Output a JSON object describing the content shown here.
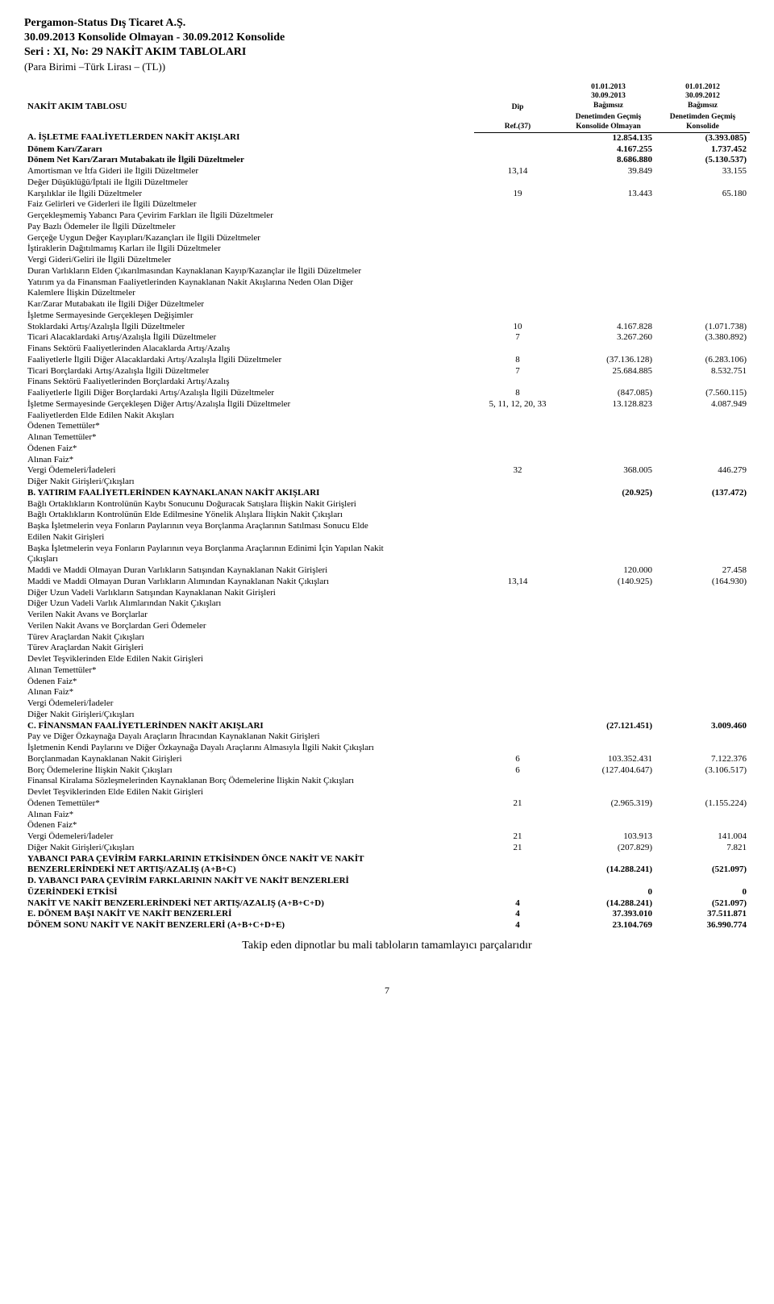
{
  "header": {
    "company": "Pergamon-Status Dış Ticaret A.Ş.",
    "period_line": "30.09.2013 Konsolide Olmayan - 30.09.2012 Konsolide",
    "series_line": "Seri : XI, No: 29 NAKİT AKIM TABLOLARI",
    "currency_line": "(Para Birimi –Türk Lirası – (TL))"
  },
  "thead": {
    "table_title": "NAKİT AKIM TABLOSU",
    "ref_top": "Dip",
    "ref_bottom": "Ref.(37)",
    "c1_date_a": "01.01.2013",
    "c1_date_b": "30.09.2013",
    "c1_l1": "Bağımsız",
    "c1_l2": "Denetimden Geçmiş",
    "c1_l3": "Konsolide Olmayan",
    "c2_date_a": "01.01.2012",
    "c2_date_b": "30.09.2012",
    "c2_l1": "Bağımsız",
    "c2_l2": "Denetimden Geçmiş",
    "c2_l3": "Konsolide"
  },
  "rows": [
    {
      "label": "A. İŞLETME FAALİYETLERDEN NAKİT AKIŞLARI",
      "ref": "",
      "v1": "12.854.135",
      "v2": "(3.393.085)",
      "bold": true
    },
    {
      "label": "Dönem Karı/Zararı",
      "ref": "",
      "v1": "4.167.255",
      "v2": "1.737.452",
      "bold": true
    },
    {
      "label": "Dönem Net Karı/Zararı Mutabakatı ile İlgili Düzeltmeler",
      "ref": "",
      "v1": "8.686.880",
      "v2": "(5.130.537)",
      "bold": true
    },
    {
      "label": "Amortisman ve İtfa Gideri ile İlgili Düzeltmeler",
      "ref": "13,14",
      "v1": "39.849",
      "v2": "33.155"
    },
    {
      "label": "Değer Düşüklüğü/İptali ile İlgili Düzeltmeler",
      "ref": "",
      "v1": "",
      "v2": ""
    },
    {
      "label": "Karşılıklar ile İlgili Düzeltmeler",
      "ref": "19",
      "v1": "13.443",
      "v2": "65.180"
    },
    {
      "label": "Faiz Gelirleri ve Giderleri ile İlgili Düzeltmeler",
      "ref": "",
      "v1": "",
      "v2": ""
    },
    {
      "label": "Gerçekleşmemiş Yabancı Para Çevirim Farkları ile İlgili Düzeltmeler",
      "ref": "",
      "v1": "",
      "v2": ""
    },
    {
      "label": "Pay Bazlı Ödemeler ile İlgili Düzeltmeler",
      "ref": "",
      "v1": "",
      "v2": ""
    },
    {
      "label": "Gerçeğe Uygun Değer Kayıpları/Kazançları ile İlgili Düzeltmeler",
      "ref": "",
      "v1": "",
      "v2": ""
    },
    {
      "label": "İştiraklerin Dağıtılmamış Karları ile İlgili Düzeltmeler",
      "ref": "",
      "v1": "",
      "v2": ""
    },
    {
      "label": "Vergi Gideri/Geliri ile İlgili Düzeltmeler",
      "ref": "",
      "v1": "",
      "v2": ""
    },
    {
      "label": "Duran Varlıkların Elden Çıkarılmasından Kaynaklanan Kayıp/Kazançlar ile İlgili Düzeltmeler",
      "ref": "",
      "v1": "",
      "v2": ""
    },
    {
      "label": "Yatırım ya da Finansman Faaliyetlerinden Kaynaklanan Nakit Akışlarına Neden Olan Diğer",
      "ref": "",
      "v1": "",
      "v2": ""
    },
    {
      "label": "Kalemlere İlişkin Düzeltmeler",
      "ref": "",
      "v1": "",
      "v2": ""
    },
    {
      "label": "Kar/Zarar Mutabakatı ile İlgili Diğer Düzeltmeler",
      "ref": "",
      "v1": "",
      "v2": ""
    },
    {
      "label": "İşletme Sermayesinde Gerçekleşen Değişimler",
      "ref": "",
      "v1": "",
      "v2": ""
    },
    {
      "label": "Stoklardaki Artış/Azalışla İlgili Düzeltmeler",
      "ref": "10",
      "v1": "4.167.828",
      "v2": "(1.071.738)"
    },
    {
      "label": "Ticari Alacaklardaki Artış/Azalışla İlgili Düzeltmeler",
      "ref": "7",
      "v1": "3.267.260",
      "v2": "(3.380.892)"
    },
    {
      "label": "Finans Sektörü Faaliyetlerinden Alacaklarda Artış/Azalış",
      "ref": "",
      "v1": "",
      "v2": ""
    },
    {
      "label": "Faaliyetlerle İlgili Diğer Alacaklardaki Artış/Azalışla İlgili Düzeltmeler",
      "ref": "8",
      "v1": "(37.136.128)",
      "v2": "(6.283.106)"
    },
    {
      "label": "Ticari Borçlardaki Artış/Azalışla İlgili Düzeltmeler",
      "ref": "7",
      "v1": "25.684.885",
      "v2": "8.532.751"
    },
    {
      "label": "Finans Sektörü Faaliyetlerinden Borçlardaki Artış/Azalış",
      "ref": "",
      "v1": "",
      "v2": ""
    },
    {
      "label": "Faaliyetlerle İlgili Diğer Borçlardaki Artış/Azalışla İlgili Düzeltmeler",
      "ref": "8",
      "v1": "(847.085)",
      "v2": "(7.560.115)"
    },
    {
      "label": "İşletme Sermayesinde Gerçekleşen Diğer Artış/Azalışla İlgili Düzeltmeler",
      "ref": "5, 11, 12, 20, 33",
      "v1": "13.128.823",
      "v2": "4.087.949"
    },
    {
      "label": "Faaliyetlerden Elde Edilen Nakit Akışları",
      "ref": "",
      "v1": "",
      "v2": ""
    },
    {
      "label": "Ödenen Temettüler*",
      "ref": "",
      "v1": "",
      "v2": ""
    },
    {
      "label": "Alınan Temettüler*",
      "ref": "",
      "v1": "",
      "v2": ""
    },
    {
      "label": "Ödenen Faiz*",
      "ref": "",
      "v1": "",
      "v2": ""
    },
    {
      "label": "Alınan Faiz*",
      "ref": "",
      "v1": "",
      "v2": ""
    },
    {
      "label": "Vergi Ödemeleri/İadeleri",
      "ref": "32",
      "v1": "368.005",
      "v2": "446.279"
    },
    {
      "label": "Diğer Nakit Girişleri/Çıkışları",
      "ref": "",
      "v1": "",
      "v2": ""
    },
    {
      "label": "B. YATIRIM FAALİYETLERİNDEN KAYNAKLANAN NAKİT AKIŞLARI",
      "ref": "",
      "v1": "(20.925)",
      "v2": "(137.472)",
      "bold": true
    },
    {
      "label": "Bağlı Ortaklıkların Kontrolünün Kaybı Sonucunu Doğuracak Satışlara İlişkin Nakit Girişleri",
      "ref": "",
      "v1": "",
      "v2": ""
    },
    {
      "label": "Bağlı Ortaklıkların Kontrolünün Elde Edilmesine Yönelik Alışlara İlişkin Nakit Çıkışları",
      "ref": "",
      "v1": "",
      "v2": ""
    },
    {
      "label": "Başka İşletmelerin veya Fonların Paylarının veya Borçlanma Araçlarının Satılması Sonucu Elde",
      "ref": "",
      "v1": "",
      "v2": ""
    },
    {
      "label": "Edilen Nakit Girişleri",
      "ref": "",
      "v1": "",
      "v2": ""
    },
    {
      "label": "Başka İşletmelerin veya Fonların Paylarının veya Borçlanma Araçlarının Edinimi İçin Yapılan Nakit",
      "ref": "",
      "v1": "",
      "v2": ""
    },
    {
      "label": "Çıkışları",
      "ref": "",
      "v1": "",
      "v2": ""
    },
    {
      "label": "Maddi ve Maddi Olmayan Duran Varlıkların Satışından Kaynaklanan Nakit Girişleri",
      "ref": "",
      "v1": "120.000",
      "v2": "27.458"
    },
    {
      "label": "Maddi ve Maddi Olmayan Duran Varlıkların Alımından Kaynaklanan Nakit Çıkışları",
      "ref": "13,14",
      "v1": "(140.925)",
      "v2": "(164.930)"
    },
    {
      "label": "Diğer Uzun Vadeli Varlıkların Satışından Kaynaklanan Nakit Girişleri",
      "ref": "",
      "v1": "",
      "v2": ""
    },
    {
      "label": "Diğer Uzun Vadeli Varlık Alımlarından Nakit Çıkışları",
      "ref": "",
      "v1": "",
      "v2": ""
    },
    {
      "label": "Verilen Nakit Avans ve Borçlarlar",
      "ref": "",
      "v1": "",
      "v2": ""
    },
    {
      "label": "Verilen Nakit Avans ve Borçlardan Geri Ödemeler",
      "ref": "",
      "v1": "",
      "v2": ""
    },
    {
      "label": "Türev Araçlardan Nakit Çıkışları",
      "ref": "",
      "v1": "",
      "v2": ""
    },
    {
      "label": "Türev Araçlardan Nakit Girişleri",
      "ref": "",
      "v1": "",
      "v2": ""
    },
    {
      "label": "Devlet Teşviklerinden Elde Edilen Nakit Girişleri",
      "ref": "",
      "v1": "",
      "v2": ""
    },
    {
      "label": "Alınan Temettüler*",
      "ref": "",
      "v1": "",
      "v2": ""
    },
    {
      "label": "Ödenen Faiz*",
      "ref": "",
      "v1": "",
      "v2": ""
    },
    {
      "label": "Alınan Faiz*",
      "ref": "",
      "v1": "",
      "v2": ""
    },
    {
      "label": "Vergi Ödemeleri/İadeler",
      "ref": "",
      "v1": "",
      "v2": ""
    },
    {
      "label": "Diğer Nakit Girişleri/Çıkışları",
      "ref": "",
      "v1": "",
      "v2": ""
    },
    {
      "label": "C. FİNANSMAN FAALİYETLERİNDEN NAKİT AKIŞLARI",
      "ref": "",
      "v1": "(27.121.451)",
      "v2": "3.009.460",
      "bold": true
    },
    {
      "label": "Pay ve Diğer Özkaynağa Dayalı Araçların İhracından Kaynaklanan Nakit Girişleri",
      "ref": "",
      "v1": "",
      "v2": ""
    },
    {
      "label": "İşletmenin Kendi Paylarını ve Diğer Özkaynağa Dayalı Araçlarını Almasıyla İlgili Nakit Çıkışları",
      "ref": "",
      "v1": "",
      "v2": ""
    },
    {
      "label": "Borçlanmadan Kaynaklanan Nakit Girişleri",
      "ref": "6",
      "v1": "103.352.431",
      "v2": "7.122.376"
    },
    {
      "label": "Borç Ödemelerine İlişkin Nakit Çıkışları",
      "ref": "6",
      "v1": "(127.404.647)",
      "v2": "(3.106.517)"
    },
    {
      "label": "Finansal Kiralama Sözleşmelerinden Kaynaklanan Borç Ödemelerine İlişkin Nakit Çıkışları",
      "ref": "",
      "v1": "",
      "v2": ""
    },
    {
      "label": "Devlet Teşviklerinden Elde Edilen Nakit Girişleri",
      "ref": "",
      "v1": "",
      "v2": ""
    },
    {
      "label": "Ödenen Temettüler*",
      "ref": "21",
      "v1": "(2.965.319)",
      "v2": "(1.155.224)"
    },
    {
      "label": "Alınan Faiz*",
      "ref": "",
      "v1": "",
      "v2": ""
    },
    {
      "label": "Ödenen Faiz*",
      "ref": "",
      "v1": "",
      "v2": ""
    },
    {
      "label": "Vergi Ödemeleri/İadeler",
      "ref": "21",
      "v1": "103.913",
      "v2": "141.004"
    },
    {
      "label": "Diğer Nakit Girişleri/Çıkışları",
      "ref": "21",
      "v1": "(207.829)",
      "v2": "7.821"
    },
    {
      "label": "YABANCI PARA ÇEVİRİM FARKLARININ ETKİSİNDEN ÖNCE NAKİT VE NAKİT",
      "ref": "",
      "v1": "",
      "v2": "",
      "bold": true
    },
    {
      "label": "BENZERLERİNDEKİ NET ARTIŞ/AZALIŞ (A+B+C)",
      "ref": "",
      "v1": "(14.288.241)",
      "v2": "(521.097)",
      "bold": true
    },
    {
      "label": "D. YABANCI PARA ÇEVİRİM FARKLARININ NAKİT VE NAKİT BENZERLERİ",
      "ref": "",
      "v1": "",
      "v2": "",
      "bold": true
    },
    {
      "label": "ÜZERİNDEKİ ETKİSİ",
      "ref": "",
      "v1": "0",
      "v2": "0",
      "bold": true
    },
    {
      "label": "NAKİT VE NAKİT BENZERLERİNDEKİ NET ARTIŞ/AZALIŞ (A+B+C+D)",
      "ref": "4",
      "v1": "(14.288.241)",
      "v2": "(521.097)",
      "bold": true
    },
    {
      "label": "E. DÖNEM BAŞI NAKİT VE NAKİT BENZERLERİ",
      "ref": "4",
      "v1": "37.393.010",
      "v2": "37.511.871",
      "bold": true
    },
    {
      "label": "DÖNEM SONU NAKİT VE NAKİT BENZERLERİ (A+B+C+D+E)",
      "ref": "4",
      "v1": "23.104.769",
      "v2": "36.990.774",
      "bold": true
    }
  ],
  "footer": {
    "note": "Takip eden dipnotlar bu mali tabloların tamamlayıcı parçalarıdır",
    "page": "7"
  }
}
